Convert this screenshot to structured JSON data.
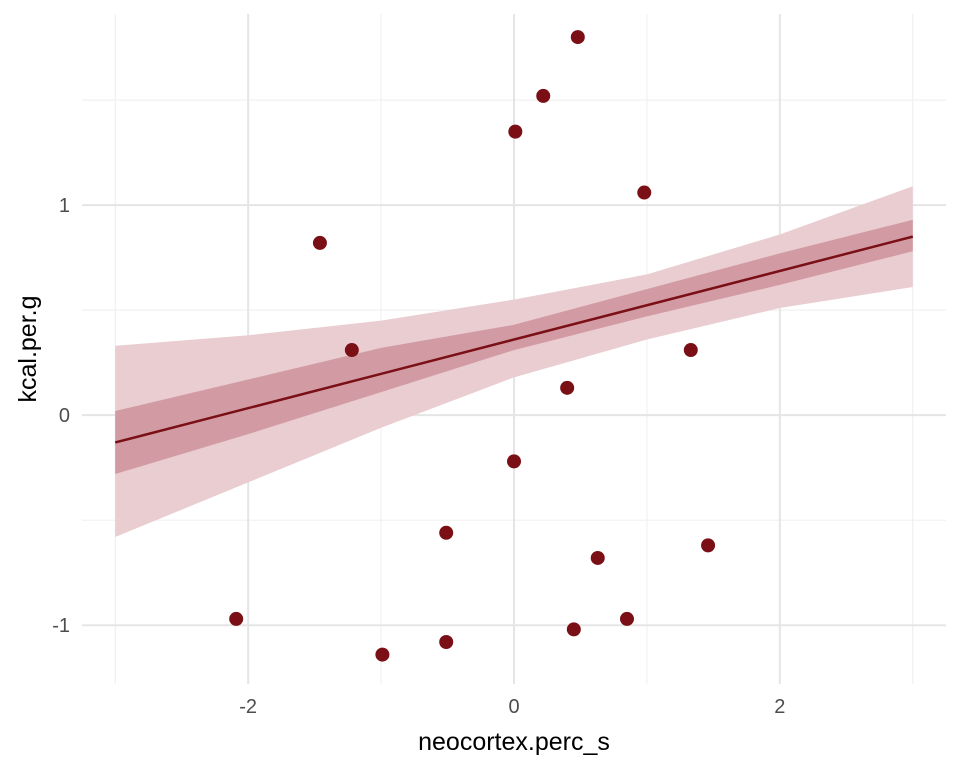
{
  "chart_data": {
    "type": "scatter",
    "xlabel": "neocortex.perc_s",
    "ylabel": "kcal.per.g",
    "xlim": [
      -3.25,
      3.25
    ],
    "ylim": [
      -1.28,
      1.91
    ],
    "x_ticks": [
      -2,
      0,
      2
    ],
    "y_ticks": [
      -1,
      0,
      1
    ],
    "x_tick_labels": [
      "-2",
      "0",
      "2"
    ],
    "y_tick_labels": [
      "-1",
      "0",
      "1"
    ],
    "grid": true,
    "legend": "none",
    "points": [
      {
        "x": 0.48,
        "y": 1.8
      },
      {
        "x": 0.22,
        "y": 1.52
      },
      {
        "x": 0.01,
        "y": 1.35
      },
      {
        "x": 0.98,
        "y": 1.06
      },
      {
        "x": -1.46,
        "y": 0.82
      },
      {
        "x": -1.22,
        "y": 0.31
      },
      {
        "x": 1.33,
        "y": 0.31
      },
      {
        "x": 0.4,
        "y": 0.13
      },
      {
        "x": 0.0,
        "y": -0.22
      },
      {
        "x": -0.51,
        "y": -0.56
      },
      {
        "x": 1.46,
        "y": -0.62
      },
      {
        "x": 0.63,
        "y": -0.68
      },
      {
        "x": -2.09,
        "y": -0.97
      },
      {
        "x": 0.85,
        "y": -0.97
      },
      {
        "x": 0.45,
        "y": -1.02
      },
      {
        "x": -0.51,
        "y": -1.08
      },
      {
        "x": -0.99,
        "y": -1.14
      }
    ],
    "fit_line": {
      "x": [
        -3.0,
        3.0
      ],
      "y": [
        -0.13,
        0.85
      ]
    },
    "inner_band": {
      "x": [
        -3.0,
        -2.0,
        -1.0,
        0.0,
        1.0,
        2.0,
        3.0
      ],
      "lower": [
        -0.28,
        -0.09,
        0.11,
        0.31,
        0.47,
        0.62,
        0.78
      ],
      "upper": [
        0.02,
        0.17,
        0.32,
        0.43,
        0.6,
        0.77,
        0.93
      ]
    },
    "outer_band": {
      "x": [
        -3.0,
        -2.0,
        -1.0,
        0.0,
        1.0,
        2.0,
        3.0
      ],
      "lower": [
        -0.58,
        -0.32,
        -0.06,
        0.18,
        0.36,
        0.51,
        0.61
      ],
      "upper": [
        0.33,
        0.38,
        0.45,
        0.55,
        0.67,
        0.86,
        1.09
      ]
    },
    "colors": {
      "point": "#7a0f16",
      "line": "#7a0f16",
      "inner_band": "#c98a93",
      "outer_band": "#e9cdd1"
    }
  }
}
